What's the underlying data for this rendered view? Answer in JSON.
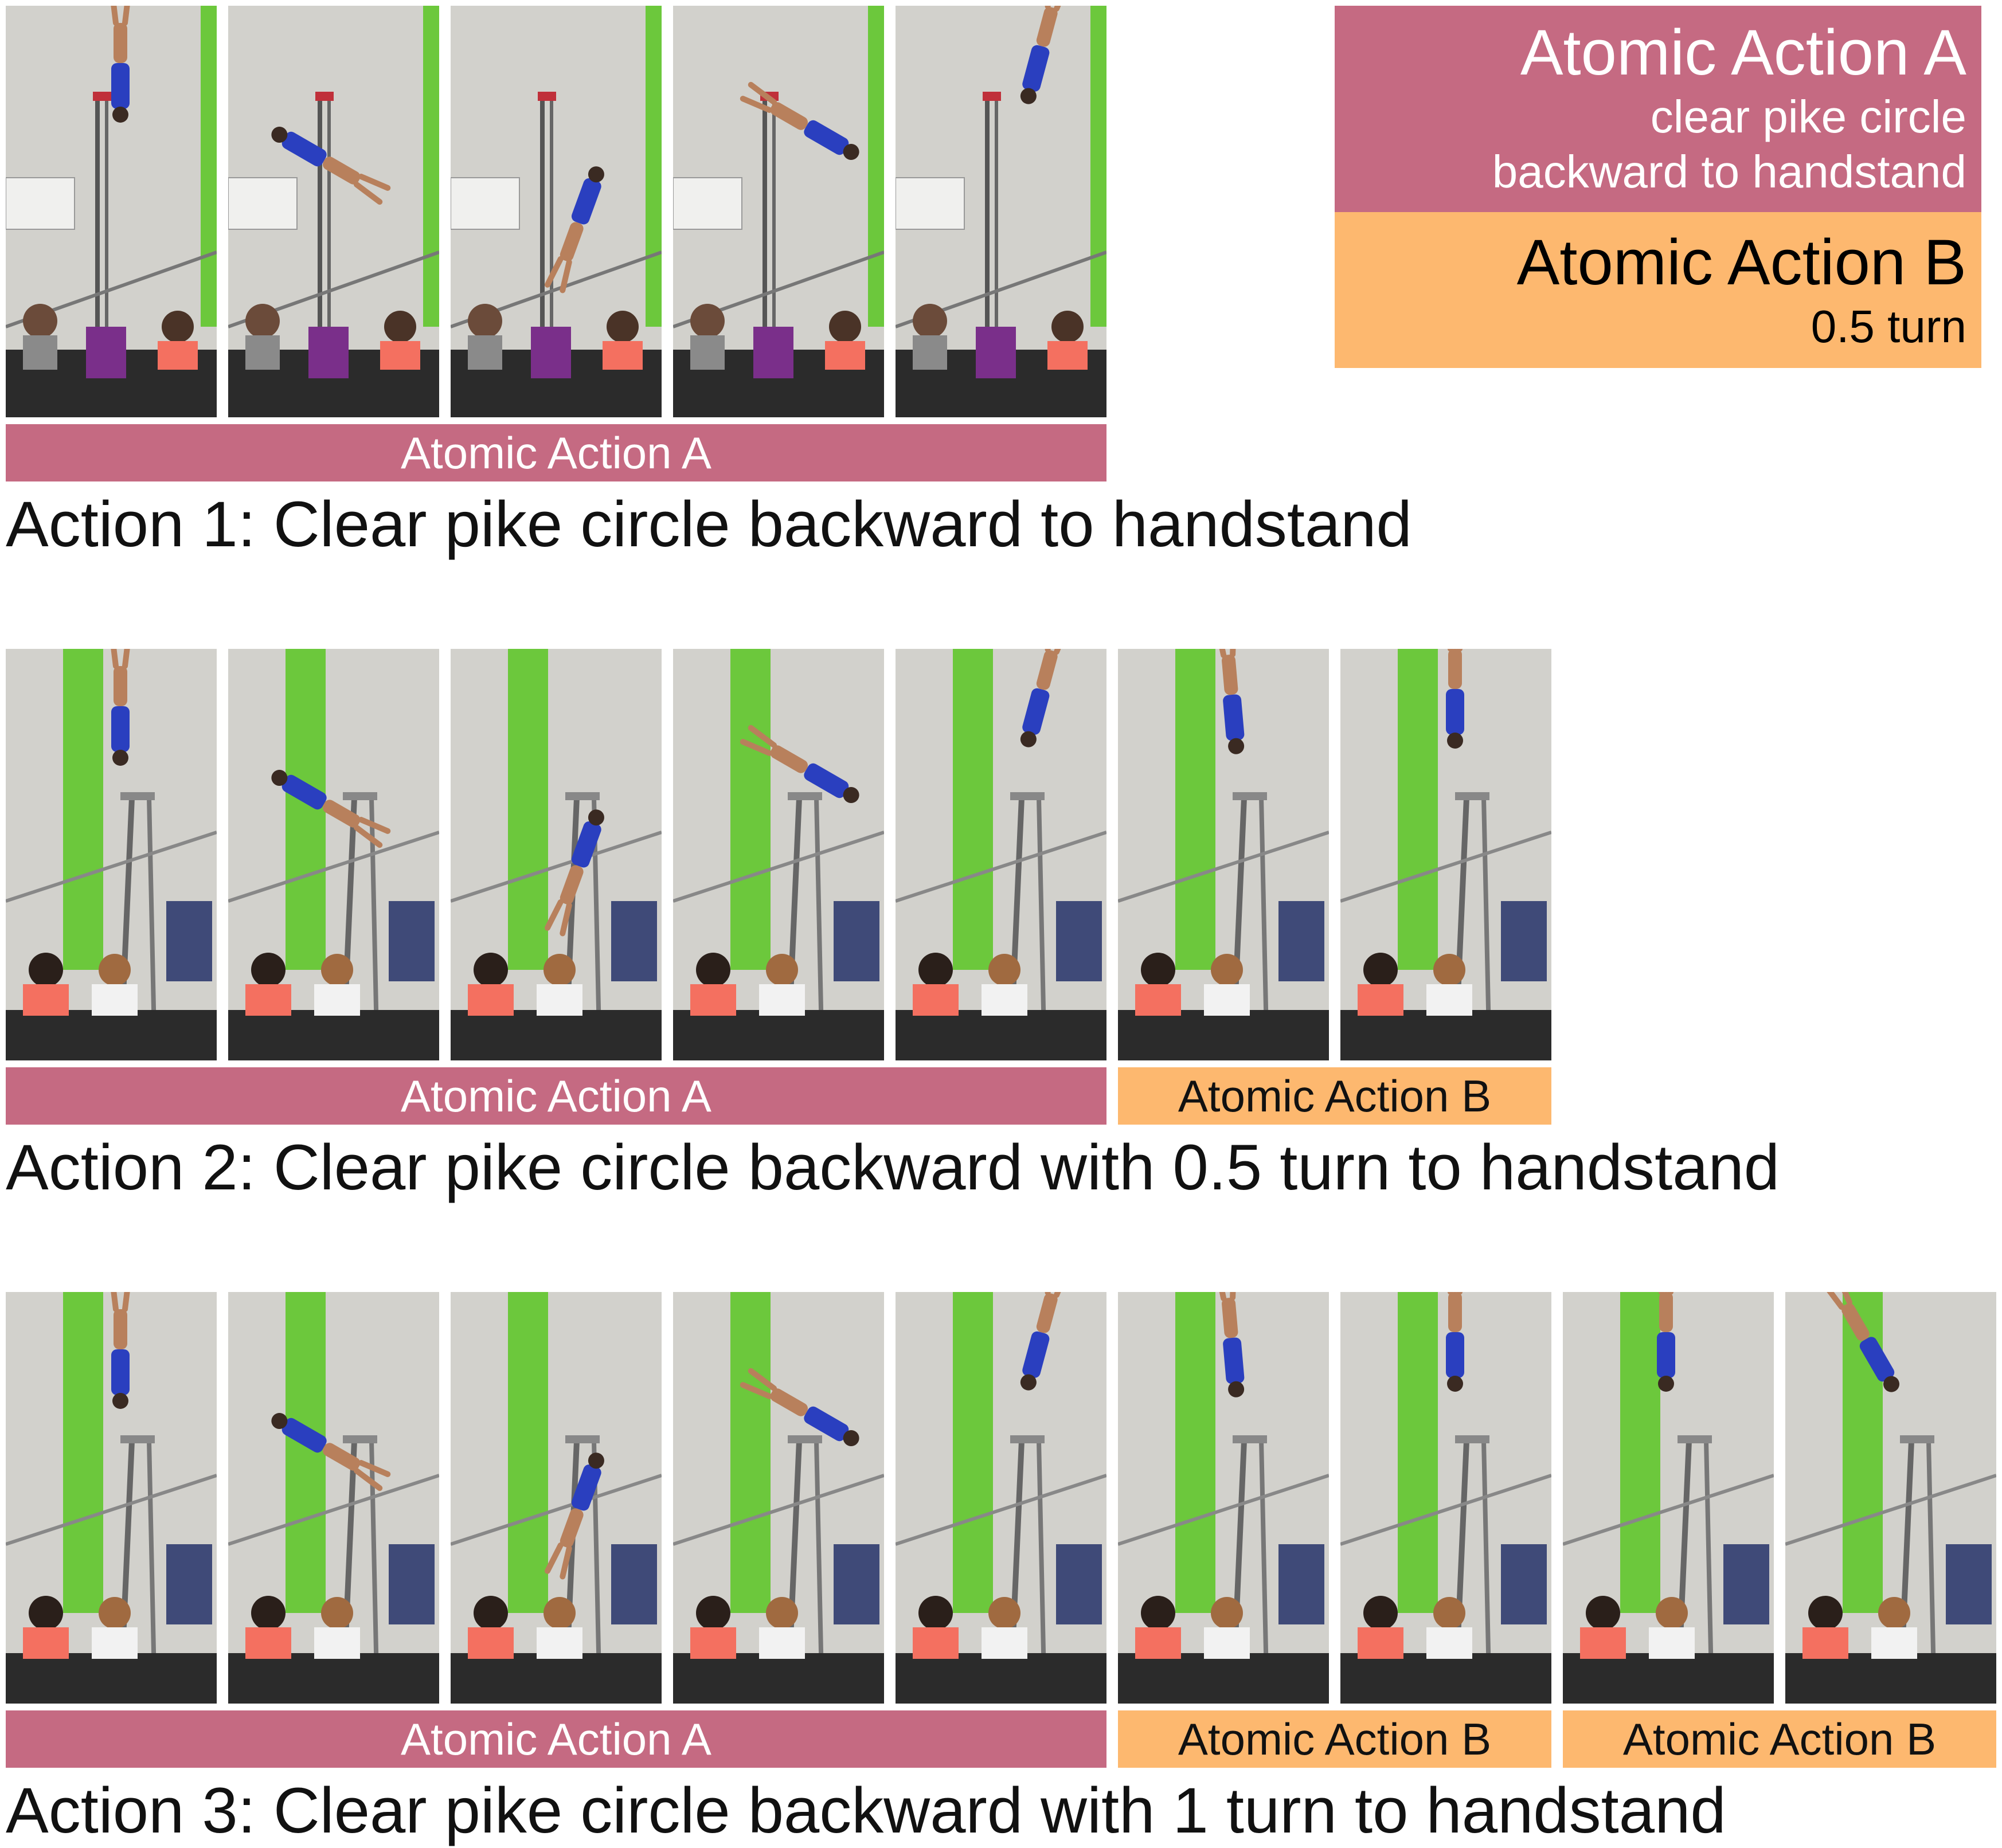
{
  "legend": {
    "a": {
      "title": "Atomic Action A",
      "desc_line1": "clear pike circle",
      "desc_line2": "backward to handstand",
      "color": "#c56a82"
    },
    "b": {
      "title": "Atomic Action B",
      "desc": "0.5 turn",
      "color": "#fdb86f"
    }
  },
  "rows": [
    {
      "segments": [
        {
          "label": "Atomic Action A"
        }
      ],
      "caption": "Action 1: Clear pike circle backward to handstand"
    },
    {
      "segments": [
        {
          "label": "Atomic Action A"
        },
        {
          "label": "Atomic Action B"
        }
      ],
      "caption": "Action 2: Clear pike circle backward with 0.5 turn to handstand"
    },
    {
      "segments": [
        {
          "label": "Atomic Action A"
        },
        {
          "label": "Atomic Action B"
        },
        {
          "label": "Atomic Action B"
        }
      ],
      "caption": "Action 3: Clear pike circle backward with 1 turn to handstand"
    }
  ]
}
